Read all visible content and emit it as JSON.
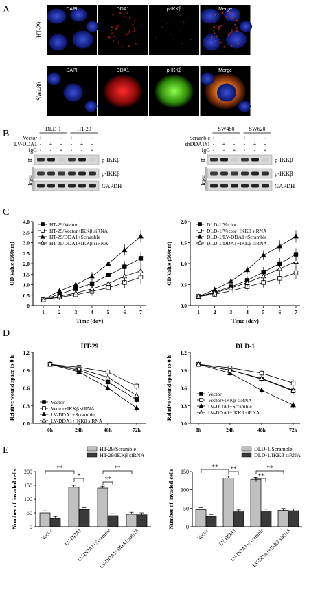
{
  "panel_letters": {
    "a": "A",
    "b": "B",
    "c": "C",
    "d": "D",
    "e": "E"
  },
  "panel_a": {
    "columns": [
      "DAPI",
      "DDA1",
      "p-IKKβ",
      "Merge"
    ],
    "rows": [
      "HT-29",
      "SW480"
    ]
  },
  "panel_b": {
    "left": {
      "cell_lines": [
        "DLD-1",
        "HT-29"
      ],
      "row_labels": [
        "Vector",
        "LV-DDA1",
        "IgG"
      ],
      "signs": [
        [
          "+",
          "-",
          "-",
          "+",
          "-",
          "-"
        ],
        [
          "-",
          "+",
          "-",
          "-",
          "+",
          "-"
        ],
        [
          "-",
          "-",
          "+",
          "-",
          "-",
          "+"
        ]
      ],
      "ip_label": "IP",
      "input_label": "Input",
      "bands": [
        "p-IKKβ",
        "p-IKKβ",
        "GAPDH"
      ]
    },
    "right": {
      "cell_lines": [
        "SW480",
        "SW620"
      ],
      "row_labels": [
        "Scramble",
        "shDDA1#1",
        "IgG"
      ],
      "signs": [
        [
          "+",
          "-",
          "-",
          "+",
          "-",
          "-"
        ],
        [
          "-",
          "+",
          "-",
          "-",
          "+",
          "-"
        ],
        [
          "-",
          "-",
          "+",
          "-",
          "-",
          "+"
        ]
      ],
      "ip_label": "IP",
      "input_label": "Input",
      "bands": [
        "p-IKKβ",
        "p-IKKβ",
        "GAPDH"
      ]
    }
  },
  "chart_data": [
    {
      "type": "line",
      "panel": "C-left",
      "xlabel": "Time (day)",
      "ylabel": "OD Value (560nm)",
      "x": [
        1,
        2,
        3,
        4,
        5,
        6,
        7
      ],
      "ylim": [
        0,
        4
      ],
      "yticks": [
        "0",
        "0.5",
        "1.0",
        "1.5",
        "2.0",
        "2.5",
        "3.0",
        "3.5",
        "4.0"
      ],
      "series": [
        {
          "name": "HT-29/Vector",
          "marker": "square-filled",
          "values": [
            0.28,
            0.55,
            0.8,
            1.05,
            1.45,
            1.85,
            2.25
          ]
        },
        {
          "name": "HT-29/Vector+IKKβ siRNA",
          "marker": "square-open",
          "values": [
            0.28,
            0.4,
            0.52,
            0.68,
            0.85,
            1.1,
            1.35
          ]
        },
        {
          "name": "HT-29/DDA1+Scramble",
          "marker": "triangle-filled",
          "values": [
            0.28,
            0.7,
            1.0,
            1.4,
            2.0,
            2.65,
            3.3
          ]
        },
        {
          "name": "HT-29/DDA1+IKKβ siRNA",
          "marker": "triangle-open",
          "values": [
            0.28,
            0.45,
            0.6,
            0.8,
            1.05,
            1.4,
            1.65
          ]
        }
      ]
    },
    {
      "type": "line",
      "panel": "C-right",
      "xlabel": "Time (day)",
      "ylabel": "OD Value (560nm)",
      "x": [
        1,
        2,
        3,
        4,
        5,
        6,
        7
      ],
      "ylim": [
        0,
        2
      ],
      "yticks": [
        "0.0",
        "0.5",
        "1.0",
        "1.5",
        "2.0"
      ],
      "series": [
        {
          "name": "DLD-1/Vector",
          "marker": "square-filled",
          "values": [
            0.22,
            0.32,
            0.45,
            0.6,
            0.8,
            1.0,
            1.22
          ]
        },
        {
          "name": "DLD-1/Vector+IKKβ siRNA",
          "marker": "square-open",
          "values": [
            0.22,
            0.27,
            0.35,
            0.45,
            0.55,
            0.65,
            0.78
          ]
        },
        {
          "name": "DLD-1/LV-DDA1+Scramble",
          "marker": "triangle-filled",
          "values": [
            0.22,
            0.38,
            0.58,
            0.85,
            1.2,
            1.42,
            1.65
          ]
        },
        {
          "name": "DLD-1/DDA1+IKKβ siRNA",
          "marker": "triangle-open",
          "values": [
            0.22,
            0.3,
            0.42,
            0.55,
            0.7,
            0.88,
            1.05
          ]
        }
      ]
    },
    {
      "type": "line",
      "panel": "D-left",
      "title": "HT-29",
      "ylabel": "Relative wound space to 0 h",
      "categories": [
        "0h",
        "24h",
        "48h",
        "72h"
      ],
      "ylim": [
        0,
        1.2
      ],
      "yticks": [
        "0.0",
        "0.3",
        "0.6",
        "0.9",
        "1.2"
      ],
      "series": [
        {
          "name": "Vector",
          "marker": "square-filled",
          "values": [
            1.0,
            0.9,
            0.7,
            0.4
          ]
        },
        {
          "name": "Vector+IKKβ siRNA",
          "marker": "square-open",
          "values": [
            1.0,
            0.95,
            0.87,
            0.63
          ]
        },
        {
          "name": "LV-DDA1+Scramble",
          "marker": "triangle-filled",
          "values": [
            1.0,
            0.87,
            0.6,
            0.26
          ]
        },
        {
          "name": "LV-DDA1+IKKβ siRNA",
          "marker": "triangle-open",
          "values": [
            1.0,
            0.92,
            0.78,
            0.47
          ]
        }
      ]
    },
    {
      "type": "line",
      "panel": "D-right",
      "title": "DLD-1",
      "ylabel": "Relative wound space to 0 h",
      "categories": [
        "0h",
        "24h",
        "48h",
        "72h"
      ],
      "ylim": [
        0,
        1.2
      ],
      "yticks": [
        "0.0",
        "0.3",
        "0.6",
        "0.9",
        "1.2"
      ],
      "series": [
        {
          "name": "Vector",
          "marker": "square-filled",
          "values": [
            1.0,
            0.9,
            0.75,
            0.55
          ]
        },
        {
          "name": "Vector+IKKβ siRNA",
          "marker": "square-open",
          "values": [
            1.0,
            0.94,
            0.85,
            0.68
          ]
        },
        {
          "name": "LV-DDA1+Scramble",
          "marker": "triangle-filled",
          "values": [
            1.0,
            0.85,
            0.56,
            0.31
          ]
        },
        {
          "name": "LV-DDA1+IKKβ siRNA",
          "marker": "triangle-open",
          "values": [
            1.0,
            0.9,
            0.76,
            0.56
          ]
        }
      ]
    },
    {
      "type": "bar",
      "panel": "E-left",
      "ylabel": "Number of invaded cells",
      "categories": [
        "Vector",
        "LV-DDA1",
        "LV-DDA1+Scramble",
        "LV-DDA1+DDA1shRNA"
      ],
      "ylim": [
        0,
        200
      ],
      "yticks": [
        "0",
        "50",
        "100",
        "150",
        "200"
      ],
      "series": [
        {
          "name": "HT-29/Scramble",
          "color": "#c0c0c0",
          "values": [
            50,
            143,
            140,
            45
          ]
        },
        {
          "name": "HT-29/IKKβ siRNA",
          "color": "#3a3a3a",
          "values": [
            30,
            62,
            40,
            43
          ]
        }
      ],
      "annotations": [
        "**",
        "*",
        "**",
        "**"
      ]
    },
    {
      "type": "bar",
      "panel": "E-right",
      "ylabel": "Number of invaded cells",
      "categories": [
        "Vector",
        "LV-DDA1",
        "LV-DDA1+Scramble",
        "LV-DDA1+IKKβ siRNA"
      ],
      "ylim": [
        0,
        150
      ],
      "yticks": [
        "0",
        "50",
        "100",
        "150"
      ],
      "series": [
        {
          "name": "DLD-1/Scramble",
          "color": "#c0c0c0",
          "values": [
            46,
            132,
            129,
            44
          ]
        },
        {
          "name": "DLD-1/IKKβ siRNA",
          "color": "#3a3a3a",
          "values": [
            28,
            40,
            42,
            43
          ]
        }
      ],
      "annotations": [
        "**",
        "**",
        "**",
        "**"
      ]
    }
  ]
}
